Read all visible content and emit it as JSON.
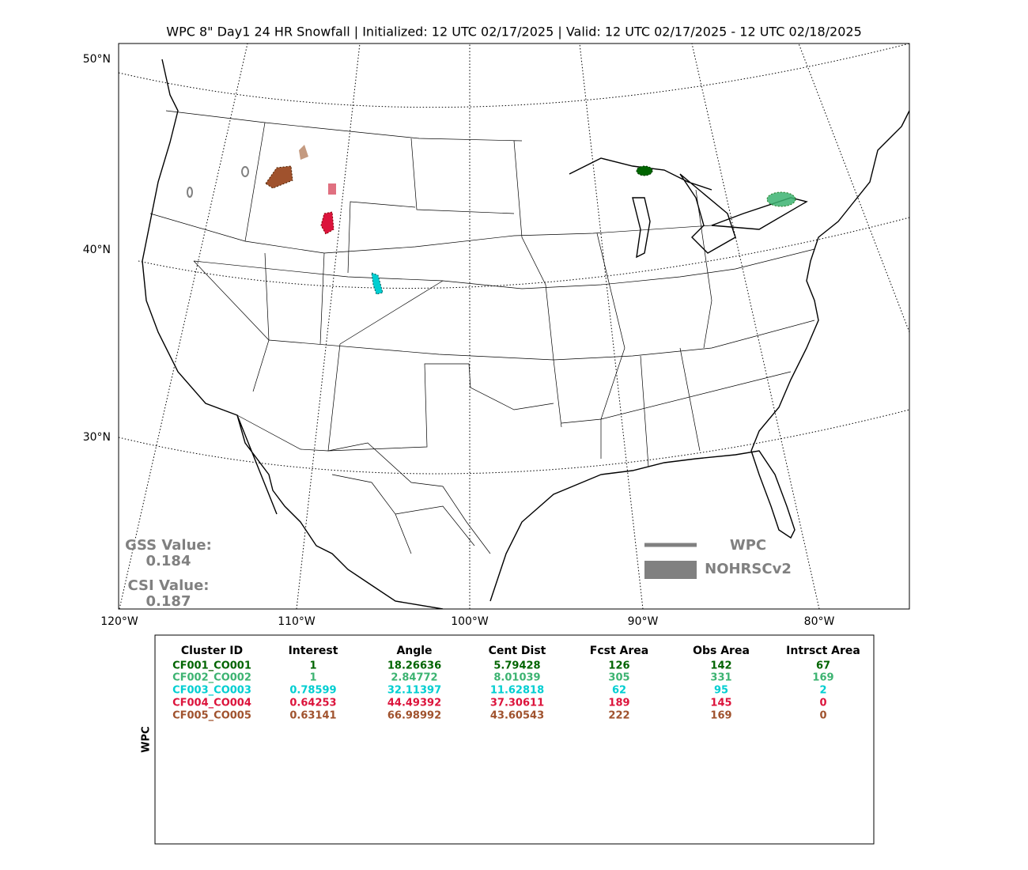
{
  "title": "WPC 8\" Day1 24 HR Snowfall | Initialized: 12 UTC 02/17/2025 | Valid: 12 UTC 02/17/2025 - 12 UTC 02/18/2025",
  "map": {
    "lat_labels": [
      "50°N",
      "40°N",
      "30°N"
    ],
    "lon_labels": [
      "120°W",
      "110°W",
      "100°W",
      "90°W",
      "80°W"
    ],
    "scores": [
      {
        "label": "GSS Value:",
        "value": "0.184"
      },
      {
        "label": "CSI Value:",
        "value": "0.187"
      }
    ],
    "legend": [
      "WPC",
      "NOHRSCv2"
    ],
    "legend_color": "#808080"
  },
  "table": {
    "side_label": "WPC",
    "header": [
      "Cluster ID",
      "Interest",
      "Angle",
      "Cent Dist",
      "Fcst Area",
      "Obs Area",
      "Intrsct Area"
    ],
    "rows": [
      [
        "CF001_CO001",
        "1",
        "18.26636",
        "5.79428",
        "126",
        "142",
        "67"
      ],
      [
        "CF002_CO002",
        "1",
        "2.84772",
        "8.01039",
        "305",
        "331",
        "169"
      ],
      [
        "CF003_CO003",
        "0.78599",
        "32.11397",
        "11.62818",
        "62",
        "95",
        "2"
      ],
      [
        "CF004_CO004",
        "0.64253",
        "44.49392",
        "37.30611",
        "189",
        "145",
        "0"
      ],
      [
        "CF005_CO005",
        "0.63141",
        "66.98992",
        "43.60543",
        "222",
        "169",
        "0"
      ]
    ],
    "row_colors": [
      "#006400",
      "#3cb371",
      "#00ced1",
      "#dc143c",
      "#a0522d"
    ]
  }
}
